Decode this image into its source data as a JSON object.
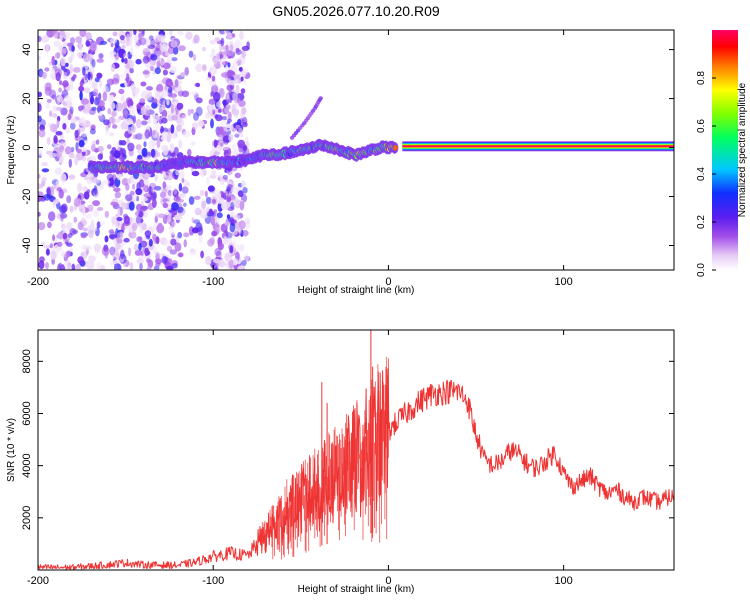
{
  "title": "GN05.2026.077.10.20.R09",
  "chart_data": [
    {
      "type": "heatmap",
      "name": "spectrogram",
      "xlabel": "Height of straight line (km)",
      "ylabel": "Frequency (Hz)",
      "xlim": [
        -200,
        163
      ],
      "ylim": [
        -50,
        48
      ],
      "xticks": [
        -200,
        -100,
        0,
        100
      ],
      "yticks": [
        -40,
        -20,
        0,
        20,
        40
      ],
      "colorbar": {
        "label": "Normalized spectral amplitude",
        "range": [
          0,
          1
        ],
        "ticks": [
          0.0,
          0.2,
          0.4,
          0.6,
          0.8
        ],
        "colormap": [
          "#ffffff",
          "#e6ccf5",
          "#a24ee8",
          "#5b1ef0",
          "#1030ff",
          "#00c8ff",
          "#00ff60",
          "#80ff00",
          "#ffff00",
          "#ff7a00",
          "#ff0000",
          "#ff0066"
        ]
      },
      "ridge": [
        {
          "x": -170,
          "y": -8,
          "amp": 0.45
        },
        {
          "x": -160,
          "y": -8,
          "amp": 0.55
        },
        {
          "x": -152,
          "y": -8,
          "amp": 0.75
        },
        {
          "x": -145,
          "y": -8,
          "amp": 0.55
        },
        {
          "x": -135,
          "y": -8,
          "amp": 0.6
        },
        {
          "x": -125,
          "y": -7,
          "amp": 0.35
        },
        {
          "x": -115,
          "y": -6,
          "amp": 0.4
        },
        {
          "x": -105,
          "y": -6,
          "amp": 0.55
        },
        {
          "x": -98,
          "y": -6,
          "amp": 0.7
        },
        {
          "x": -90,
          "y": -6,
          "amp": 0.45
        },
        {
          "x": -80,
          "y": -5,
          "amp": 0.4
        },
        {
          "x": -72,
          "y": -3,
          "amp": 0.5
        },
        {
          "x": -64,
          "y": -3,
          "amp": 0.55
        },
        {
          "x": -56,
          "y": -2,
          "amp": 0.5
        },
        {
          "x": -48,
          "y": -1,
          "amp": 0.55
        },
        {
          "x": -40,
          "y": 1,
          "amp": 0.5
        },
        {
          "x": -32,
          "y": 0,
          "amp": 0.7
        },
        {
          "x": -24,
          "y": -2,
          "amp": 0.6
        },
        {
          "x": -18,
          "y": -3,
          "amp": 0.75
        },
        {
          "x": -10,
          "y": -1,
          "amp": 0.55
        },
        {
          "x": -4,
          "y": 0,
          "amp": 0.7
        },
        {
          "x": 4,
          "y": 0,
          "amp": 0.85
        }
      ],
      "steady_band": {
        "x_start": 8,
        "x_end": 163,
        "y": 0.5,
        "amp": 1.0
      },
      "branch": [
        {
          "x": -55,
          "y": 4
        },
        {
          "x": -48,
          "y": 10
        },
        {
          "x": -42,
          "y": 16
        },
        {
          "x": -38,
          "y": 21
        }
      ],
      "noise_x_range": [
        -200,
        -80
      ],
      "noise_columns_x": [
        -186,
        -170,
        -152,
        -137,
        -124,
        -95,
        -88
      ]
    },
    {
      "type": "line",
      "name": "snr",
      "xlabel": "Height of straight line (km)",
      "ylabel": "SNR (10 * v/v)",
      "xlim": [
        -200,
        163
      ],
      "ylim": [
        0,
        9200
      ],
      "xticks": [
        -200,
        -100,
        0,
        100
      ],
      "yticks": [
        2000,
        4000,
        6000,
        8000
      ],
      "color": "#ee3333",
      "series": [
        {
          "name": "SNR",
          "x": [
            -200,
            -180,
            -160,
            -150,
            -140,
            -120,
            -110,
            -100,
            -90,
            -85,
            -80,
            -75,
            -70,
            -65,
            -60,
            -55,
            -50,
            -45,
            -40,
            -35,
            -30,
            -25,
            -20,
            -15,
            -10,
            -5,
            0,
            5,
            10,
            15,
            20,
            25,
            30,
            35,
            40,
            45,
            50,
            55,
            60,
            65,
            70,
            75,
            80,
            85,
            90,
            95,
            100,
            105,
            110,
            115,
            120,
            125,
            130,
            135,
            140,
            145,
            150,
            155,
            160,
            163
          ],
          "y": [
            100,
            100,
            200,
            280,
            200,
            180,
            300,
            520,
            650,
            580,
            560,
            1000,
            1300,
            1700,
            2100,
            2350,
            2600,
            2850,
            3050,
            3300,
            3500,
            3700,
            4050,
            4400,
            4700,
            5000,
            5300,
            5700,
            6000,
            6300,
            6550,
            6750,
            6800,
            6850,
            6850,
            6500,
            5200,
            4200,
            4000,
            4200,
            4600,
            4400,
            4000,
            3900,
            4200,
            4500,
            3700,
            3200,
            3400,
            3600,
            3200,
            2900,
            3100,
            2800,
            2600,
            2800,
            2700,
            2600,
            2800,
            2800
          ]
        }
      ],
      "spikes": [
        {
          "x": -38,
          "y": 7200
        },
        {
          "x": -35,
          "y": 6400
        },
        {
          "x": -10,
          "y": 9200
        },
        {
          "x": -9,
          "y": 7800
        }
      ]
    }
  ]
}
